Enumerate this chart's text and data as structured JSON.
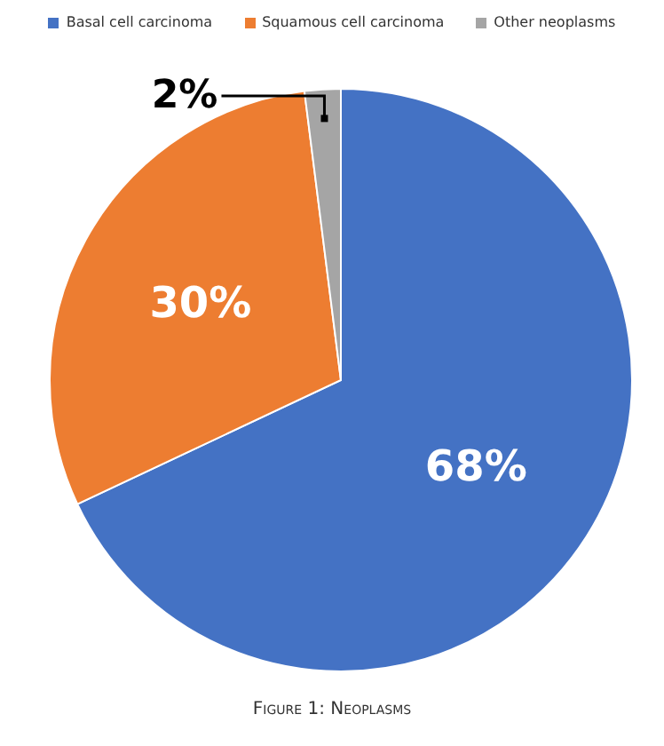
{
  "chart_data": {
    "type": "pie",
    "categories": [
      "Basal cell carcinoma",
      "Squamous cell carcinoma",
      "Other neoplasms"
    ],
    "values": [
      68,
      30,
      2
    ],
    "colors": [
      "#4472c4",
      "#ed7d31",
      "#a5a5a5"
    ],
    "value_labels": [
      "68%",
      "30%",
      "2%"
    ],
    "legend": "top",
    "annotations": [
      "Figure 1: Neoplasms"
    ]
  }
}
